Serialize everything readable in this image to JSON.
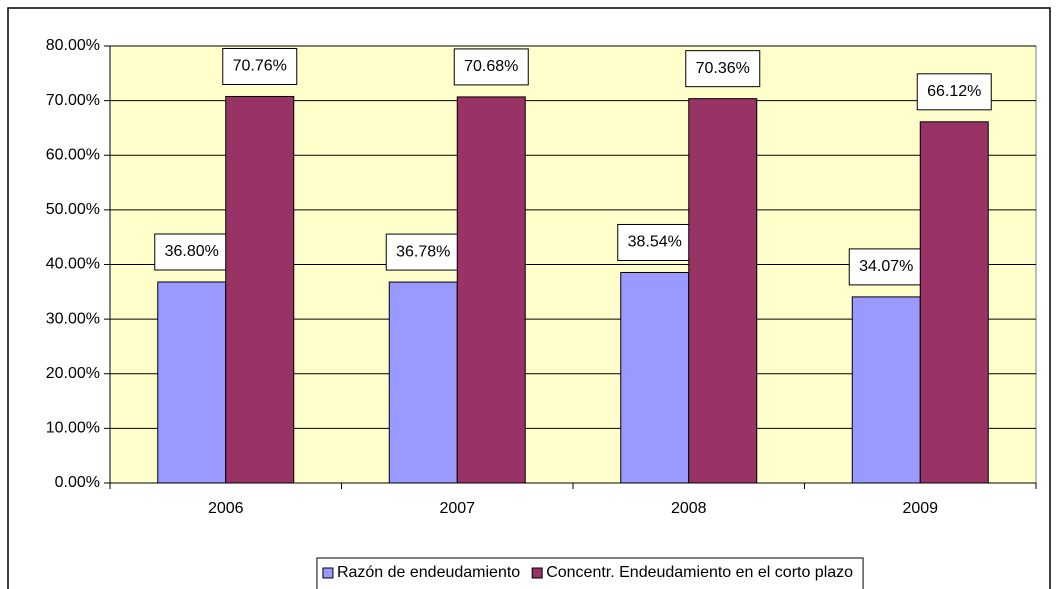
{
  "chart_data": {
    "type": "bar",
    "categories": [
      "2006",
      "2007",
      "2008",
      "2009"
    ],
    "series": [
      {
        "name": "Razón de endeudamiento",
        "color": "#9999ff",
        "values": [
          36.8,
          36.78,
          38.54,
          34.07
        ],
        "value_labels": [
          "36.80%",
          "36.78%",
          "38.54%",
          "34.07%"
        ]
      },
      {
        "name": "Concentr. Endeudamiento en el corto plazo",
        "color": "#993366",
        "values": [
          70.76,
          70.68,
          70.36,
          66.12
        ],
        "value_labels": [
          "70.76%",
          "70.68%",
          "70.36%",
          "66.12%"
        ]
      }
    ],
    "ylim": [
      0,
      80
    ],
    "yticks": [
      {
        "value": 0,
        "label": "0.00%"
      },
      {
        "value": 10,
        "label": "10.00%"
      },
      {
        "value": 20,
        "label": "20.00%"
      },
      {
        "value": 30,
        "label": "30.00%"
      },
      {
        "value": 40,
        "label": "40.00%"
      },
      {
        "value": 50,
        "label": "50.00%"
      },
      {
        "value": 60,
        "label": "60.00%"
      },
      {
        "value": 70,
        "label": "70.00%"
      },
      {
        "value": 80,
        "label": "80.00%"
      }
    ],
    "grid": true,
    "legend": "bottom",
    "plot_background": "#ffffcc"
  }
}
